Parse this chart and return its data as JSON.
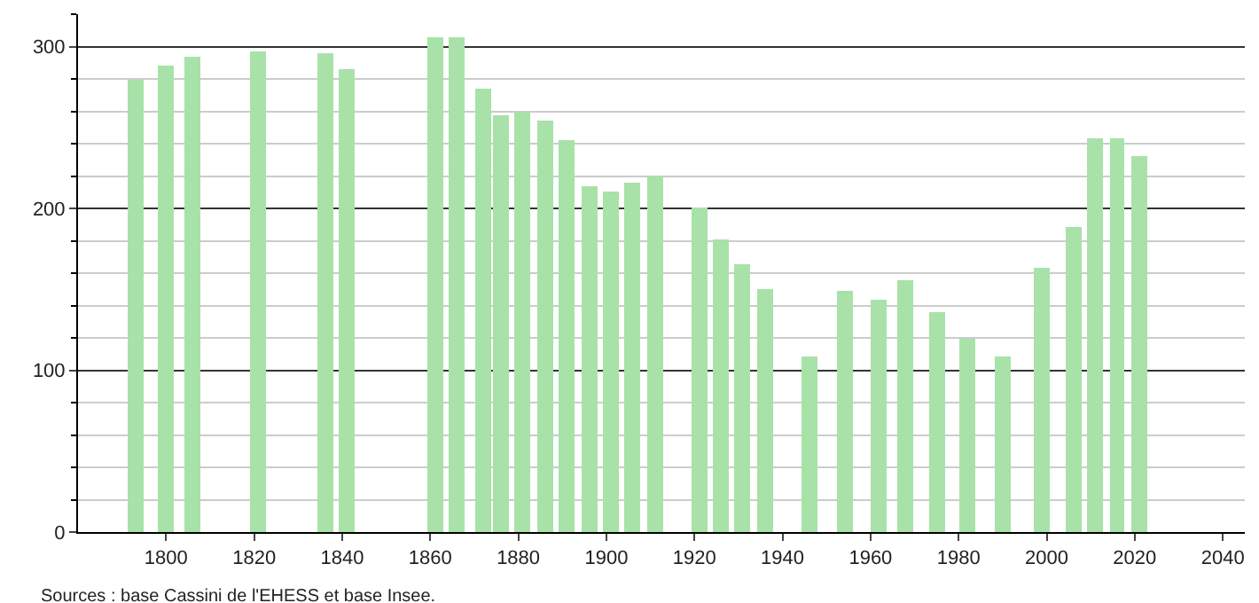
{
  "chart_data": {
    "type": "bar",
    "x": [
      1793,
      1800,
      1806,
      1821,
      1836,
      1841,
      1861,
      1866,
      1872,
      1876,
      1881,
      1886,
      1891,
      1896,
      1901,
      1906,
      1911,
      1921,
      1926,
      1931,
      1936,
      1946,
      1954,
      1962,
      1968,
      1975,
      1982,
      1990,
      1999,
      2006,
      2011,
      2016,
      2021
    ],
    "values": [
      279,
      288,
      294,
      297,
      296,
      286,
      306,
      306,
      274,
      258,
      260,
      254,
      242,
      214,
      210,
      216,
      220,
      201,
      181,
      165,
      150,
      109,
      149,
      144,
      156,
      136,
      120,
      108,
      163,
      189,
      243,
      243,
      232
    ],
    "color": "#a8e2a8",
    "xlim": [
      1780,
      2045
    ],
    "xticks": [
      1800,
      1820,
      1840,
      1860,
      1880,
      1900,
      1920,
      1940,
      1960,
      1980,
      2000,
      2020,
      2040
    ],
    "ylim": [
      0,
      320
    ],
    "yticks": [
      0,
      100,
      200,
      300
    ],
    "grid": "y",
    "annotations": [
      "Sources : base Cassini de l'EHESS et base Insee."
    ]
  }
}
